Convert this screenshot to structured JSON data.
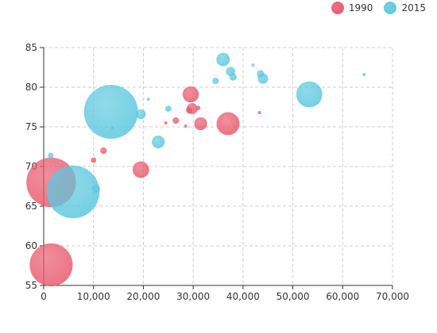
{
  "chart_data": {
    "type": "scatter",
    "title": "",
    "xlabel": "",
    "ylabel": "",
    "xlim": [
      0,
      70000
    ],
    "ylim": [
      55,
      85
    ],
    "x_ticks": [
      0,
      10000,
      20000,
      30000,
      40000,
      50000,
      60000,
      70000
    ],
    "x_tick_labels": [
      "0",
      "10,000",
      "20,000",
      "30,000",
      "40,000",
      "50,000",
      "60,000",
      "70,000"
    ],
    "y_ticks": [
      55,
      60,
      65,
      70,
      75,
      80,
      85
    ],
    "y_tick_labels": [
      "55",
      "60",
      "65",
      "70",
      "75",
      "80",
      "85"
    ],
    "grid": true,
    "grid_style": "dashed",
    "legend_position": "top-right",
    "bubble_size_encodes": "population",
    "series": [
      {
        "name": "1990",
        "color": "#e85a6d",
        "points": [
          {
            "x": 1500,
            "y": 68.0,
            "size": 1154605773
          },
          {
            "x": 1500,
            "y": 57.6,
            "size": 870601776
          },
          {
            "x": 10000,
            "y": 70.8,
            "size": 15000000
          },
          {
            "x": 12000,
            "y": 72.0,
            "size": 20000000
          },
          {
            "x": 19500,
            "y": 69.6,
            "size": 130000000
          },
          {
            "x": 24500,
            "y": 75.5,
            "size": 4000000
          },
          {
            "x": 26500,
            "y": 75.8,
            "size": 20000000
          },
          {
            "x": 28500,
            "y": 75.1,
            "size": 3000000
          },
          {
            "x": 29500,
            "y": 79.1,
            "size": 123000000
          },
          {
            "x": 29800,
            "y": 77.3,
            "size": 56000000
          },
          {
            "x": 29200,
            "y": 77.1,
            "size": 20000000
          },
          {
            "x": 31000,
            "y": 77.4,
            "size": 10000000
          },
          {
            "x": 31500,
            "y": 75.4,
            "size": 78000000
          },
          {
            "x": 37000,
            "y": 75.4,
            "size": 250000000
          },
          {
            "x": 43300,
            "y": 76.8,
            "size": 2000000
          }
        ]
      },
      {
        "name": "2015",
        "color": "#5cc8de",
        "points": [
          {
            "x": 13500,
            "y": 76.9,
            "size": 1371220000
          },
          {
            "x": 5900,
            "y": 66.8,
            "size": 1311050527
          },
          {
            "x": 1400,
            "y": 71.4,
            "size": 15000000
          },
          {
            "x": 10500,
            "y": 67.2,
            "size": 30000000
          },
          {
            "x": 13800,
            "y": 74.8,
            "size": 2000000
          },
          {
            "x": 19500,
            "y": 76.6,
            "size": 45000000
          },
          {
            "x": 21000,
            "y": 78.5,
            "size": 3000000
          },
          {
            "x": 23000,
            "y": 73.1,
            "size": 78000000
          },
          {
            "x": 25000,
            "y": 77.3,
            "size": 18000000
          },
          {
            "x": 34500,
            "y": 80.8,
            "size": 20000000
          },
          {
            "x": 36000,
            "y": 83.5,
            "size": 85000000
          },
          {
            "x": 37500,
            "y": 82.0,
            "size": 40000000
          },
          {
            "x": 38000,
            "y": 81.3,
            "size": 25000000
          },
          {
            "x": 42000,
            "y": 82.8,
            "size": 500000
          },
          {
            "x": 43500,
            "y": 81.7,
            "size": 25000000
          },
          {
            "x": 44000,
            "y": 81.1,
            "size": 50000000
          },
          {
            "x": 53300,
            "y": 79.1,
            "size": 320000000
          },
          {
            "x": 64300,
            "y": 81.6,
            "size": 2000000
          }
        ]
      }
    ]
  }
}
